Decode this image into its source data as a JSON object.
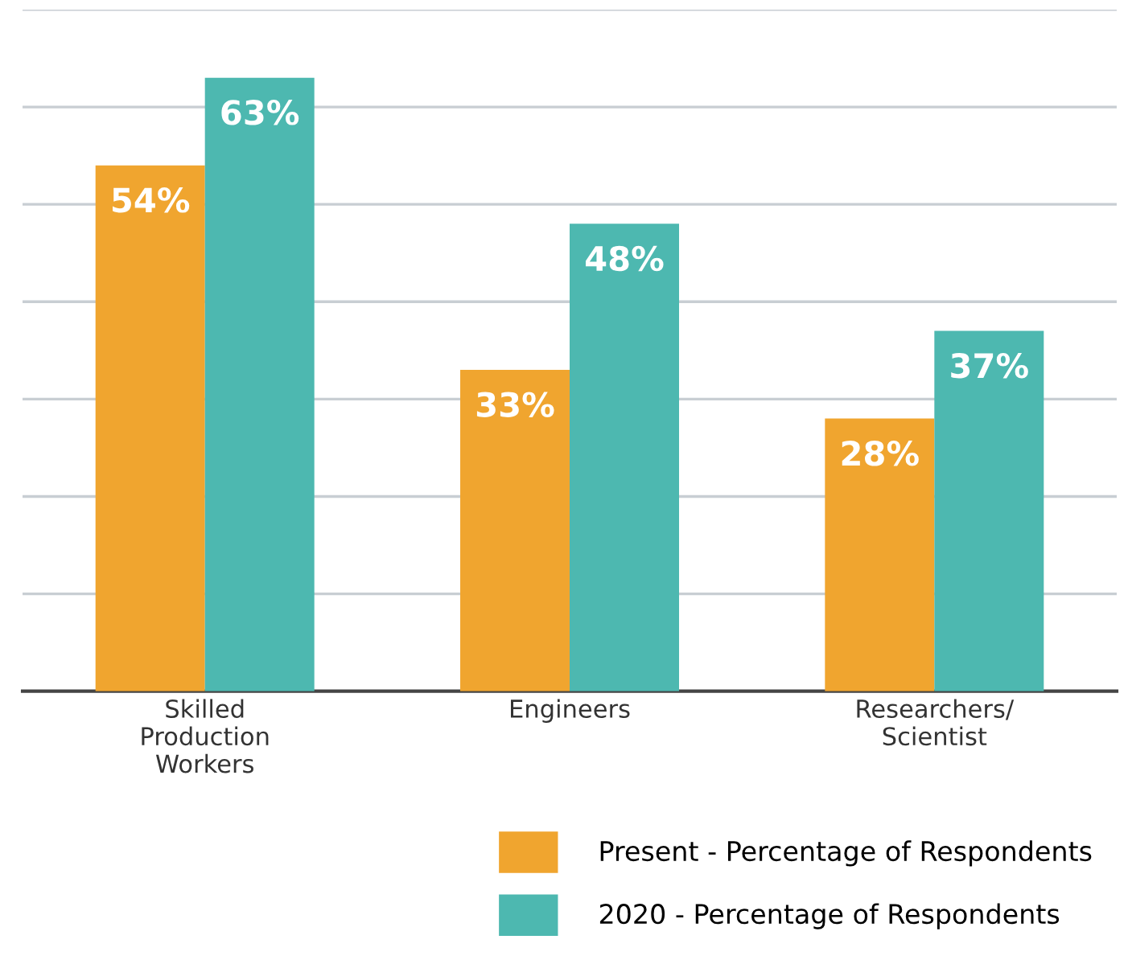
{
  "chart_data": {
    "type": "bar",
    "categories": [
      "Skilled\nProduction\nWorkers",
      "Engineers",
      "Researchers/\nScientist"
    ],
    "series": [
      {
        "name": "Present - Percentage of Respondents",
        "color": "#f0a52f",
        "values": [
          54,
          33,
          28
        ],
        "value_labels": [
          "54%",
          "33%",
          "28%"
        ]
      },
      {
        "name": "2020 - Percentage of Respondents",
        "color": "#4db8b0",
        "values": [
          63,
          48,
          37
        ],
        "value_labels": [
          "63%",
          "48%",
          "37%"
        ]
      }
    ],
    "ylim": [
      0,
      70
    ],
    "yticks": [
      {
        "value": 0,
        "label": null
      },
      {
        "value": 10,
        "label": null
      },
      {
        "value": 20,
        "label": null
      },
      {
        "value": 30,
        "label": null
      },
      {
        "value": 40,
        "label": null
      },
      {
        "value": 50,
        "label": null
      },
      {
        "value": 60,
        "label": null
      },
      {
        "value": 70,
        "label": null
      }
    ],
    "grid": "y",
    "legend": "bottom",
    "tick_labels": "x"
  }
}
